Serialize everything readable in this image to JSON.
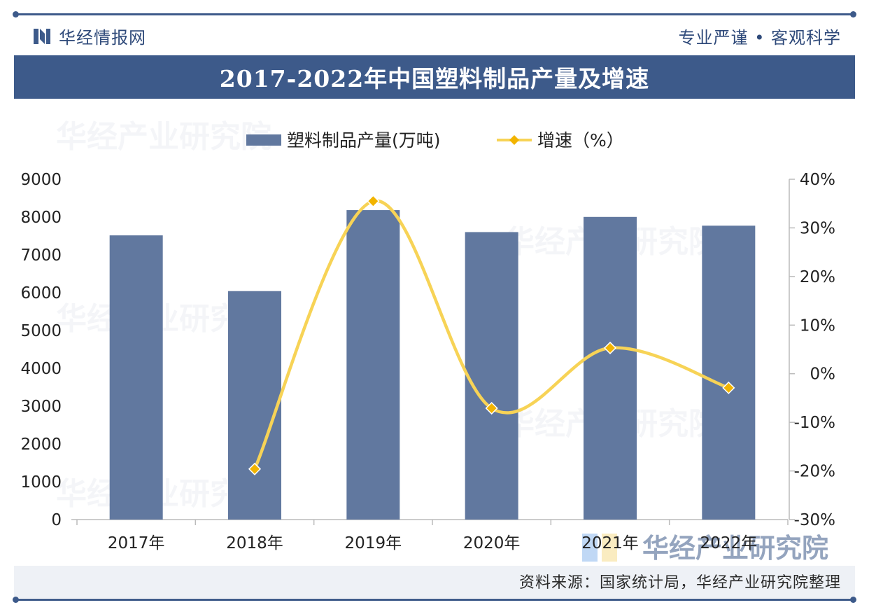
{
  "header": {
    "brand": "华经情报网",
    "slogan": "专业严谨 • 客观科学",
    "title": "2017-2022年中国塑料制品产量及增速"
  },
  "footer": {
    "source": "资料来源：国家统计局，华经产业研究院整理"
  },
  "watermark": {
    "text": "华经产业研究院"
  },
  "colors": {
    "primary": "#3d5a8a",
    "bar": "#61789f",
    "line": "#f7d356",
    "marker": "#f2b400"
  },
  "chart_data": {
    "type": "bar",
    "title": "2017-2022年中国塑料制品产量及增速",
    "categories": [
      "2017年",
      "2018年",
      "2019年",
      "2020年",
      "2021年",
      "2022年"
    ],
    "series": [
      {
        "name": "塑料制品产量(万吨)",
        "type": "bar",
        "axis": "left",
        "values": [
          7516,
          6042,
          8184,
          7603,
          8004,
          7772
        ]
      },
      {
        "name": "增速（%）",
        "type": "line",
        "axis": "right",
        "values": [
          null,
          -19.6,
          35.5,
          -7.1,
          5.3,
          -2.9
        ]
      }
    ],
    "yleft": {
      "min": 0,
      "max": 9000,
      "ticks": [
        0,
        1000,
        2000,
        3000,
        4000,
        5000,
        6000,
        7000,
        8000,
        9000
      ]
    },
    "yright": {
      "min": -30,
      "max": 40,
      "ticks": [
        "-30%",
        "-20%",
        "-10%",
        "0%",
        "10%",
        "20%",
        "30%",
        "40%"
      ]
    },
    "legend": "top-center"
  }
}
